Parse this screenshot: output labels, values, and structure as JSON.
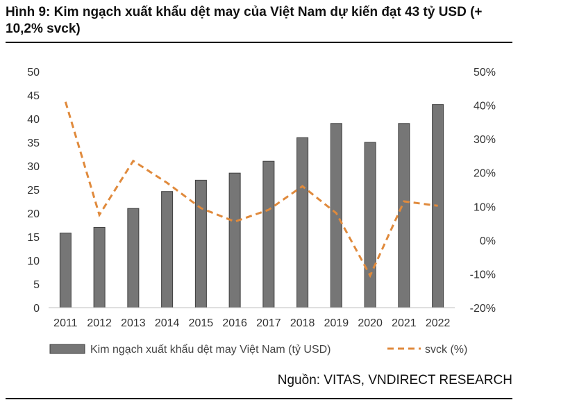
{
  "header": {
    "title": "Hình 9: Kim ngạch xuất khẩu dệt may của Việt Nam dự kiến đạt 43 tỷ USD (+ 10,2% svck)"
  },
  "footer": {
    "source": "Nguồn: VITAS, VNDIRECT RESEARCH"
  },
  "colors": {
    "bar": "#767676",
    "bar_edge": "#3f3f3f",
    "line": "#e08a3c",
    "axis": "#bfbfbf"
  },
  "chart_data": {
    "type": "bar",
    "title": "",
    "categories": [
      "2011",
      "2012",
      "2013",
      "2014",
      "2015",
      "2016",
      "2017",
      "2018",
      "2019",
      "2020",
      "2021",
      "2022"
    ],
    "y_left": {
      "ylim": [
        0,
        50
      ],
      "ticks": [
        "0",
        "5",
        "10",
        "15",
        "20",
        "25",
        "30",
        "35",
        "40",
        "45",
        "50"
      ]
    },
    "y_right": {
      "ylim": [
        -20,
        50
      ],
      "ticks": [
        "-20%",
        "-10%",
        "0%",
        "10%",
        "20%",
        "30%",
        "40%",
        "50%"
      ]
    },
    "series": [
      {
        "name": "Kim ngạch xuất khẩu dệt may Việt Nam (tỷ USD)",
        "type": "bar",
        "axis": "left",
        "values": [
          15.8,
          17.0,
          21.0,
          24.6,
          27.0,
          28.5,
          31.0,
          36.0,
          39.0,
          35.0,
          39.0,
          43.0
        ]
      },
      {
        "name": "svck (%)",
        "type": "line",
        "style": "dashed",
        "axis": "right",
        "values": [
          41,
          7.5,
          23.5,
          17,
          9.5,
          5.5,
          9,
          16,
          8,
          -10.5,
          11.5,
          10.2
        ]
      }
    ],
    "grid": false,
    "legend_position": "bottom"
  }
}
